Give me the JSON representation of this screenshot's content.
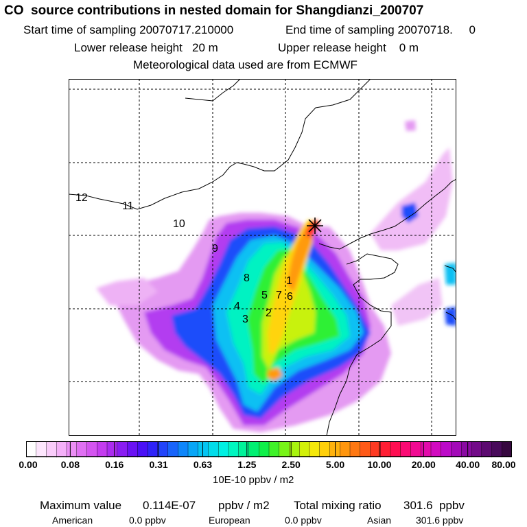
{
  "header": {
    "title": "CO  source contributions in nested domain for Shangdianzi_200707",
    "start_label": "Start time of sampling 20070717.210000",
    "end_label": "End time of sampling 20070718.     0",
    "lower_label": "Lower release height   20 m",
    "upper_label": "Upper release height    0 m",
    "met_label": "Meteorological data used are from ECMWF"
  },
  "colorbar": {
    "ticks": [
      "0.00",
      "0.08",
      "0.16",
      "0.31",
      "0.63",
      "1.25",
      "2.50",
      "5.00",
      "10.00",
      "20.00",
      "40.00",
      "80.00"
    ],
    "unit": "10E-10 ppbv / m2",
    "colors": [
      "#ffffff",
      "#fde6fd",
      "#f9ccfa",
      "#f4b0f8",
      "#eb8ff5",
      "#e070f3",
      "#d455f0",
      "#c43cef",
      "#ac2cf0",
      "#8a1df2",
      "#6a12f4",
      "#4a10f6",
      "#2f23f8",
      "#2244fa",
      "#1864fa",
      "#0e86fa",
      "#08a6f7",
      "#04c4f2",
      "#02dcea",
      "#00f0e2",
      "#00f6c0",
      "#00f39a",
      "#00ef72",
      "#10f04a",
      "#40f22a",
      "#78f418",
      "#a8f40e",
      "#d2f00a",
      "#f4e80a",
      "#ffd00a",
      "#ffb20c",
      "#ff960e",
      "#ff7812",
      "#ff5a18",
      "#ff3a22",
      "#ff1e34",
      "#ff0e52",
      "#fb0a74",
      "#f10a92",
      "#e30aab",
      "#d20ac0",
      "#bc0ac8",
      "#a30ab8",
      "#8a0aa2",
      "#720a88",
      "#5c0a70",
      "#480a5a",
      "#36083f"
    ]
  },
  "map": {
    "grid_labels": [
      "12",
      "11",
      "10",
      "9",
      "8",
      "1",
      "5",
      "7",
      "6",
      "4",
      "2",
      "3"
    ],
    "station_marker": "station-asterisk",
    "land_color": "#ffffff",
    "grid_line_color": "#000000"
  },
  "footer": {
    "max_label": "Maximum value",
    "max_value": "0.114E-07",
    "max_unit": "ppbv / m2",
    "total_label": "Total mixing ratio",
    "total_value": "301.6",
    "total_unit": "ppbv",
    "regions": [
      {
        "name": "American",
        "value": "0.0 ppbv"
      },
      {
        "name": "European",
        "value": "0.0 ppbv"
      },
      {
        "name": "Asian",
        "value": "301.6 ppbv"
      }
    ]
  }
}
